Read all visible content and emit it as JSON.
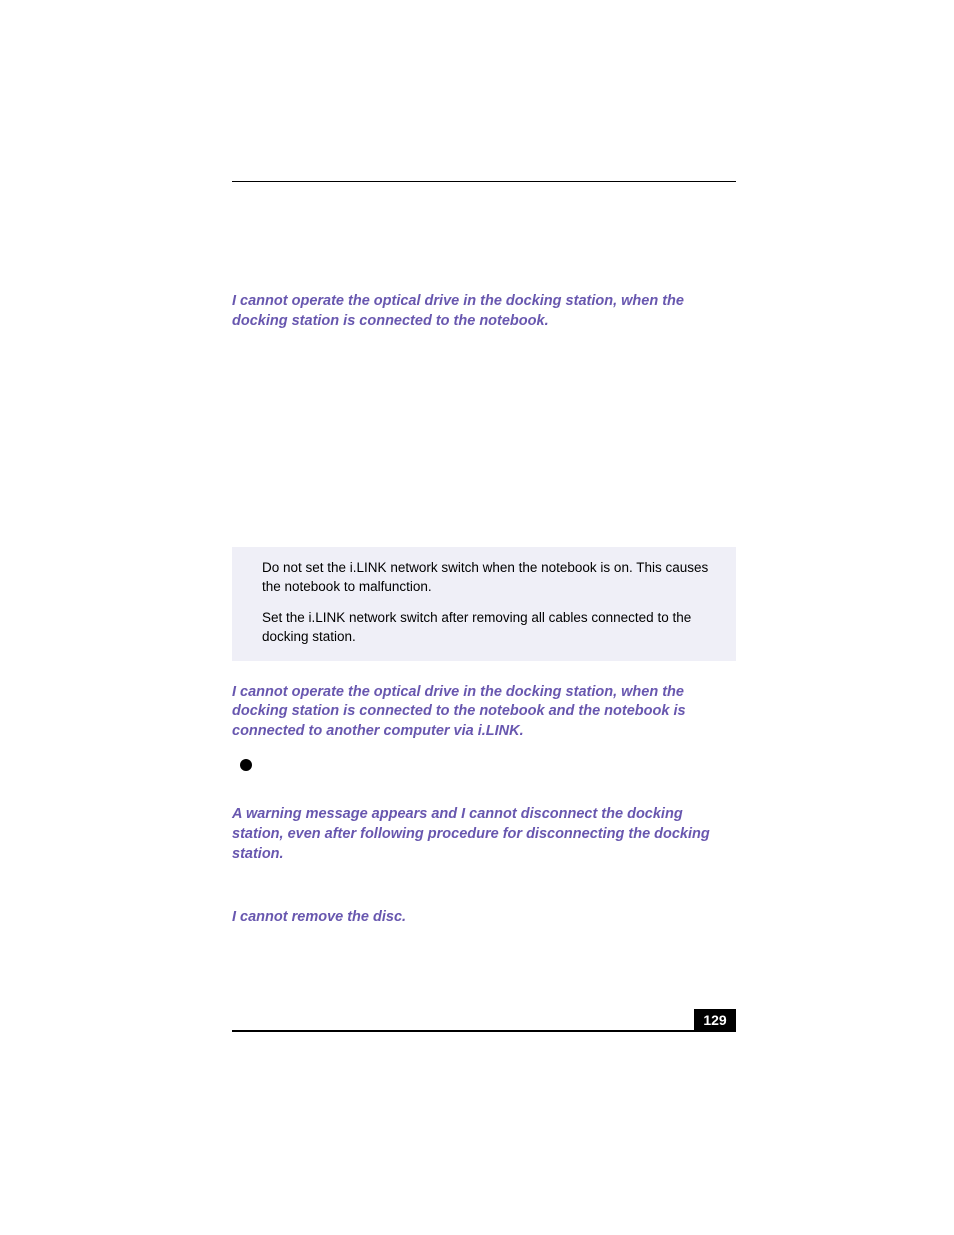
{
  "page": {
    "number": "129",
    "background": "#ffffff",
    "rule_color": "#000000",
    "heading_color": "#6857af",
    "note_bg": "#efeff7",
    "body_text_color": "#000000"
  },
  "sections": {
    "h1": "I cannot operate the optical drive in the docking station, when the docking station is connected to the notebook.",
    "note": {
      "p1": "Do not set the i.LINK network switch when the notebook is on. This causes the notebook to malfunction.",
      "p2": "Set the i.LINK network switch after removing all cables connected to the docking station."
    },
    "h2": "I cannot operate the optical drive in the docking station, when the docking station is connected to the notebook and the notebook is connected to another computer via i.LINK.",
    "h3": "A warning message appears and I cannot disconnect the docking station, even after following procedure for disconnecting the docking station.",
    "h4": "I cannot remove the disc."
  }
}
